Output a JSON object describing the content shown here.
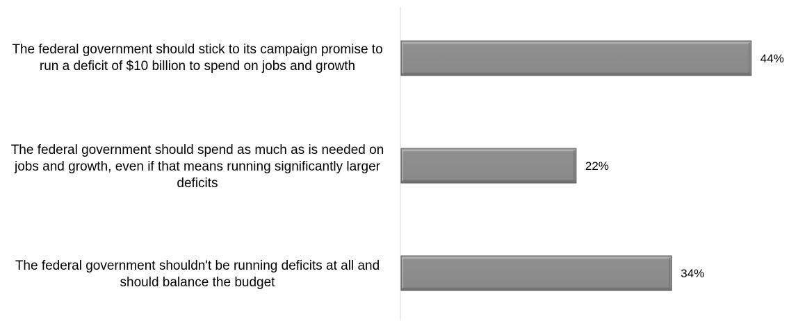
{
  "chart_data": {
    "type": "bar",
    "orientation": "horizontal",
    "categories": [
      "The federal government should stick to its campaign promise to run a deficit of $10 billion to spend on jobs and growth",
      "The federal government should spend as much as is needed on jobs and growth, even if that means running significantly larger deficits",
      "The federal government shouldn't be running deficits at all and should balance the budget"
    ],
    "values": [
      44,
      22,
      34
    ],
    "value_labels": [
      "44%",
      "22%",
      "34%"
    ],
    "xlim": [
      0,
      50
    ],
    "grid": false,
    "legend": "none",
    "colors": {
      "bar": "#8c8c8c",
      "bar_edge": "#5a5a5a",
      "axis": "#d9d9d9"
    }
  }
}
